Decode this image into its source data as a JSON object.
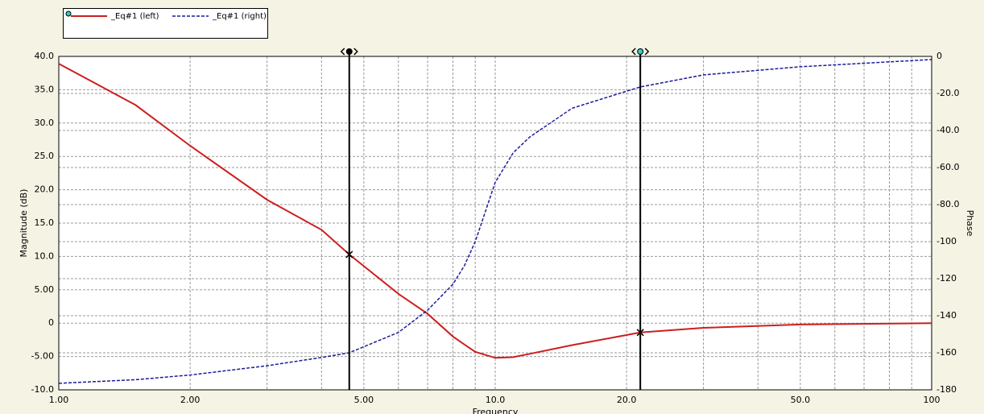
{
  "chart_data": {
    "type": "line",
    "xlabel": "Frequency",
    "ylabel": "Magnitude (dB)",
    "y2label": "Phase",
    "xscale": "log",
    "grid": true,
    "x": [
      1,
      1.5,
      2,
      3,
      4,
      4.63,
      6,
      7,
      8,
      8.5,
      9,
      10,
      11,
      12,
      15,
      21.5,
      30,
      50,
      100
    ],
    "series": [
      {
        "name": "_Eq#1 (left)",
        "color": "#cc1f1f",
        "dash": false,
        "axis": "y",
        "values": [
          38.9,
          32.7,
          26.6,
          18.5,
          14.0,
          10.3,
          4.4,
          1.4,
          -2.0,
          -3.2,
          -4.3,
          -5.2,
          -5.1,
          -4.6,
          -3.3,
          -1.4,
          -0.7,
          -0.2,
          0
        ]
      },
      {
        "name": "_Eq#1 (right)",
        "color": "#1a1a9a",
        "dash": true,
        "axis": "y2",
        "values": [
          -176.5,
          -174.5,
          -172,
          -167,
          -162.5,
          -160,
          -149,
          -137,
          -123,
          -113,
          -100,
          -68,
          -52,
          -43.5,
          -28,
          -16.5,
          -10,
          -5.6,
          -1.7
        ]
      }
    ],
    "cursors": [
      4.63,
      21.5
    ],
    "xlim": [
      1,
      100
    ],
    "xticks": [
      {
        "value": 1,
        "label": "1.00"
      },
      {
        "value": 2,
        "label": "2.00"
      },
      {
        "value": 5,
        "label": "5.00"
      },
      {
        "value": 10,
        "label": "10.0"
      },
      {
        "value": 20,
        "label": "20.0"
      },
      {
        "value": 50,
        "label": "50.0"
      },
      100
    ],
    "xminorticks": [
      3,
      4,
      6,
      7,
      8,
      9,
      30,
      40,
      60,
      70,
      80,
      90
    ],
    "ylim": [
      -10,
      40
    ],
    "yticks": [
      {
        "value": 40,
        "label": "40.0"
      },
      {
        "value": 35,
        "label": "35.0"
      },
      {
        "value": 30,
        "label": "30.0"
      },
      {
        "value": 25,
        "label": "25.0"
      },
      {
        "value": 20,
        "label": "20.0"
      },
      {
        "value": 15,
        "label": "15.0"
      },
      {
        "value": 10,
        "label": "10.0"
      },
      {
        "value": 5,
        "label": "5.00"
      },
      0,
      {
        "value": -5,
        "label": "-5.00"
      },
      {
        "value": -10,
        "label": "-10.0"
      }
    ],
    "y2lim": [
      -180,
      0
    ],
    "y2ticks": [
      0,
      {
        "value": -20,
        "label": "-20.0"
      },
      {
        "value": -40,
        "label": "-40.0"
      },
      {
        "value": -60,
        "label": "-60.0"
      },
      {
        "value": -80,
        "label": "-80.0"
      },
      -100,
      -120,
      -140,
      -160,
      -180
    ]
  }
}
